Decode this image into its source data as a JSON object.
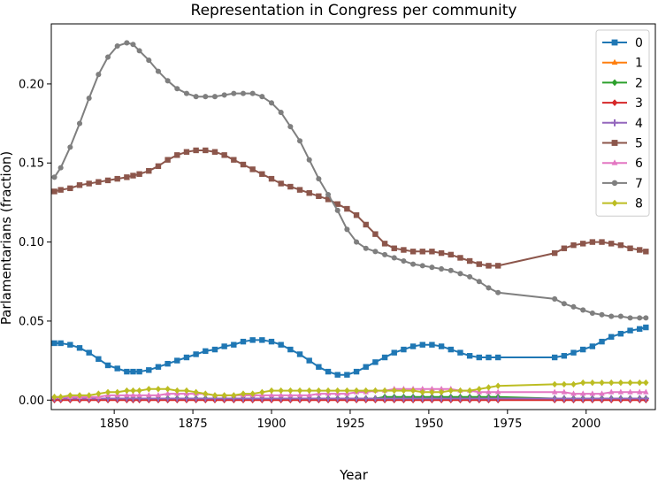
{
  "chart_data": {
    "type": "line",
    "title": "Representation in Congress per community",
    "xlabel": "Year",
    "ylabel": "Parlamentarians (fraction)",
    "xlim": [
      1830,
      2022
    ],
    "ylim": [
      -0.006,
      0.238
    ],
    "xticks": [
      1850,
      1875,
      1900,
      1925,
      1950,
      1975,
      2000
    ],
    "yticks": [
      0.0,
      0.05,
      0.1,
      0.15,
      0.2
    ],
    "ytick_labels": [
      "0.00",
      "0.05",
      "0.10",
      "0.15",
      "0.20"
    ],
    "legend_position": "top-right",
    "x": [
      1831,
      1833,
      1836,
      1839,
      1842,
      1845,
      1848,
      1851,
      1854,
      1856,
      1858,
      1861,
      1864,
      1867,
      1870,
      1873,
      1876,
      1879,
      1882,
      1885,
      1888,
      1891,
      1894,
      1897,
      1900,
      1903,
      1906,
      1909,
      1912,
      1915,
      1918,
      1921,
      1924,
      1927,
      1930,
      1933,
      1936,
      1939,
      1942,
      1945,
      1948,
      1951,
      1954,
      1957,
      1960,
      1963,
      1966,
      1969,
      1972,
      1990,
      1993,
      1996,
      1999,
      2002,
      2005,
      2008,
      2011,
      2014,
      2017,
      2019
    ],
    "series": [
      {
        "name": "0",
        "color": "#1f77b4",
        "marker": "square",
        "values": [
          0.036,
          0.036,
          0.035,
          0.033,
          0.03,
          0.026,
          0.022,
          0.02,
          0.018,
          0.018,
          0.018,
          0.019,
          0.021,
          0.023,
          0.025,
          0.027,
          0.029,
          0.031,
          0.032,
          0.034,
          0.035,
          0.037,
          0.038,
          0.038,
          0.037,
          0.035,
          0.032,
          0.029,
          0.025,
          0.021,
          0.018,
          0.016,
          0.016,
          0.018,
          0.021,
          0.024,
          0.027,
          0.03,
          0.032,
          0.034,
          0.035,
          0.035,
          0.034,
          0.032,
          0.03,
          0.028,
          0.027,
          0.027,
          0.027,
          0.027,
          0.028,
          0.03,
          0.032,
          0.034,
          0.037,
          0.04,
          0.042,
          0.044,
          0.045,
          0.046
        ]
      },
      {
        "name": "1",
        "color": "#ff7f0e",
        "marker": "triangle",
        "values": [
          0.001,
          0.001,
          0.001,
          0.001,
          0.001,
          0.001,
          0.001,
          0.001,
          0.001,
          0.001,
          0.001,
          0.001,
          0.001,
          0.001,
          0.001,
          0.001,
          0.001,
          0.001,
          0.001,
          0.001,
          0.001,
          0.001,
          0.001,
          0.001,
          0.001,
          0.001,
          0.001,
          0.001,
          0.001,
          0.001,
          0.001,
          0.001,
          0.001,
          0.001,
          0.001,
          0.001,
          0.001,
          0.001,
          0.001,
          0.001,
          0.001,
          0.001,
          0.001,
          0.001,
          0.001,
          0.001,
          0.001,
          0.001,
          0.001,
          0.001,
          0.001,
          0.001,
          0.001,
          0.001,
          0.001,
          0.001,
          0.001,
          0.001,
          0.001,
          0.001
        ]
      },
      {
        "name": "2",
        "color": "#2ca02c",
        "marker": "diamond",
        "values": [
          0.001,
          0.001,
          0.001,
          0.001,
          0.001,
          0.001,
          0.001,
          0.001,
          0.001,
          0.001,
          0.001,
          0.001,
          0.001,
          0.001,
          0.001,
          0.001,
          0.001,
          0.001,
          0.001,
          0.001,
          0.001,
          0.001,
          0.001,
          0.001,
          0.001,
          0.001,
          0.001,
          0.001,
          0.001,
          0.001,
          0.001,
          0.001,
          0.001,
          0.001,
          0.001,
          0.001,
          0.002,
          0.002,
          0.002,
          0.002,
          0.002,
          0.002,
          0.002,
          0.002,
          0.002,
          0.002,
          0.002,
          0.002,
          0.002,
          0.001,
          0.001,
          0.001,
          0.001,
          0.001,
          0.001,
          0.001,
          0.001,
          0.001,
          0.001,
          0.001
        ]
      },
      {
        "name": "3",
        "color": "#d62728",
        "marker": "diamond",
        "values": [
          0,
          0,
          0,
          0,
          0,
          0,
          0,
          0,
          0,
          0,
          0,
          0,
          0,
          0,
          0,
          0,
          0,
          0,
          0,
          0,
          0,
          0,
          0,
          0,
          0,
          0,
          0,
          0,
          0,
          0,
          0,
          0,
          0,
          0,
          0,
          0,
          0,
          0,
          0,
          0,
          0,
          0,
          0,
          0,
          0,
          0,
          0,
          0,
          0,
          0,
          0,
          0,
          0,
          0,
          0,
          0,
          0,
          0,
          0,
          0
        ]
      },
      {
        "name": "4",
        "color": "#9467bd",
        "marker": "plus",
        "values": [
          0.001,
          0.001,
          0.001,
          0.001,
          0.001,
          0.001,
          0.001,
          0.001,
          0.001,
          0.001,
          0.001,
          0.001,
          0.001,
          0.001,
          0.001,
          0.001,
          0.001,
          0.001,
          0.001,
          0.001,
          0.001,
          0.001,
          0.001,
          0.001,
          0.001,
          0.001,
          0.001,
          0.001,
          0.001,
          0.001,
          0.001,
          0.001,
          0.001,
          0.001,
          0.001,
          0.001,
          0.001,
          0.001,
          0.001,
          0.001,
          0.001,
          0.001,
          0.001,
          0.001,
          0.001,
          0.001,
          0.001,
          0.001,
          0.001,
          0.001,
          0.001,
          0.001,
          0.001,
          0.001,
          0.001,
          0.001,
          0.001,
          0.001,
          0.001,
          0.001
        ]
      },
      {
        "name": "5",
        "color": "#8c564b",
        "marker": "square",
        "values": [
          0.132,
          0.133,
          0.134,
          0.136,
          0.137,
          0.138,
          0.139,
          0.14,
          0.141,
          0.142,
          0.143,
          0.145,
          0.148,
          0.152,
          0.155,
          0.157,
          0.158,
          0.158,
          0.157,
          0.155,
          0.152,
          0.149,
          0.146,
          0.143,
          0.14,
          0.137,
          0.135,
          0.133,
          0.131,
          0.129,
          0.127,
          0.124,
          0.121,
          0.117,
          0.111,
          0.105,
          0.099,
          0.096,
          0.095,
          0.094,
          0.094,
          0.094,
          0.093,
          0.092,
          0.09,
          0.088,
          0.086,
          0.085,
          0.085,
          0.093,
          0.096,
          0.098,
          0.099,
          0.1,
          0.1,
          0.099,
          0.098,
          0.096,
          0.095,
          0.094
        ]
      },
      {
        "name": "6",
        "color": "#e377c2",
        "marker": "triangle",
        "values": [
          0.002,
          0.002,
          0.002,
          0.002,
          0.002,
          0.002,
          0.003,
          0.003,
          0.003,
          0.003,
          0.003,
          0.003,
          0.003,
          0.004,
          0.004,
          0.004,
          0.004,
          0.004,
          0.003,
          0.003,
          0.003,
          0.003,
          0.003,
          0.003,
          0.003,
          0.003,
          0.003,
          0.003,
          0.003,
          0.004,
          0.004,
          0.004,
          0.004,
          0.005,
          0.005,
          0.006,
          0.006,
          0.007,
          0.007,
          0.007,
          0.007,
          0.007,
          0.007,
          0.007,
          0.006,
          0.006,
          0.005,
          0.005,
          0.005,
          0.005,
          0.005,
          0.004,
          0.004,
          0.004,
          0.004,
          0.005,
          0.005,
          0.005,
          0.005,
          0.005
        ]
      },
      {
        "name": "7",
        "color": "#7f7f7f",
        "marker": "circle",
        "values": [
          0.141,
          0.147,
          0.16,
          0.175,
          0.191,
          0.206,
          0.217,
          0.224,
          0.226,
          0.225,
          0.221,
          0.215,
          0.208,
          0.202,
          0.197,
          0.194,
          0.192,
          0.192,
          0.192,
          0.193,
          0.194,
          0.194,
          0.194,
          0.192,
          0.188,
          0.182,
          0.173,
          0.164,
          0.152,
          0.14,
          0.13,
          0.12,
          0.108,
          0.1,
          0.096,
          0.094,
          0.092,
          0.09,
          0.088,
          0.086,
          0.085,
          0.084,
          0.083,
          0.082,
          0.08,
          0.078,
          0.075,
          0.071,
          0.068,
          0.064,
          0.061,
          0.059,
          0.057,
          0.055,
          0.054,
          0.053,
          0.053,
          0.052,
          0.052,
          0.052
        ]
      },
      {
        "name": "8",
        "color": "#bcbd22",
        "marker": "diamond",
        "values": [
          0.002,
          0.002,
          0.003,
          0.003,
          0.003,
          0.004,
          0.005,
          0.005,
          0.006,
          0.006,
          0.006,
          0.007,
          0.007,
          0.007,
          0.006,
          0.006,
          0.005,
          0.004,
          0.003,
          0.003,
          0.003,
          0.004,
          0.004,
          0.005,
          0.006,
          0.006,
          0.006,
          0.006,
          0.006,
          0.006,
          0.006,
          0.006,
          0.006,
          0.006,
          0.006,
          0.006,
          0.006,
          0.006,
          0.006,
          0.006,
          0.005,
          0.005,
          0.005,
          0.006,
          0.006,
          0.006,
          0.007,
          0.008,
          0.009,
          0.01,
          0.01,
          0.01,
          0.011,
          0.011,
          0.011,
          0.011,
          0.011,
          0.011,
          0.011,
          0.011
        ]
      }
    ]
  }
}
